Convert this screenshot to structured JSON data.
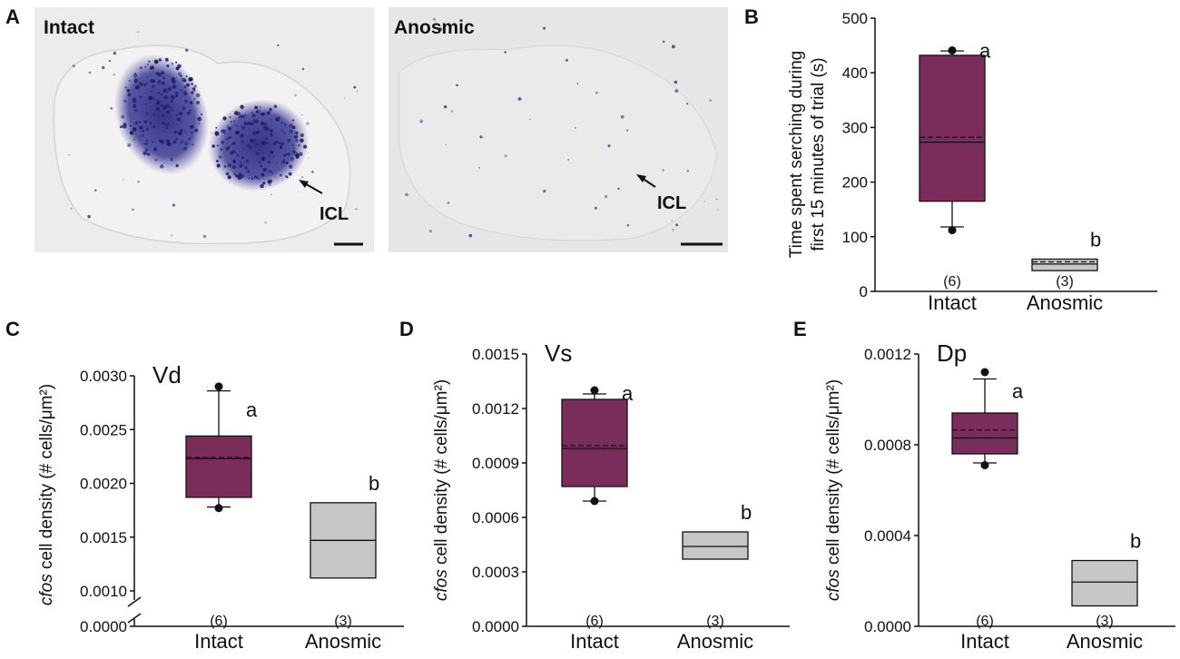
{
  "panel_labels": [
    "A",
    "B",
    "C",
    "D",
    "E"
  ],
  "images": [
    {
      "label": "Intact",
      "annotation": "ICL"
    },
    {
      "label": "Anosmic",
      "annotation": "ICL"
    }
  ],
  "colors": {
    "intact": "#7a2d5a",
    "anosmic": "#c6c6c6",
    "stain": "#2a2a80"
  },
  "chart_data": [
    {
      "panel": "B",
      "type": "box",
      "ylabel": [
        "Time spent serching during",
        "first 15 minutes of trial (s)"
      ],
      "ylim": [
        0,
        500
      ],
      "yticks": [
        "0",
        "100",
        "200",
        "300",
        "400",
        "500"
      ],
      "categories": [
        "Intact",
        "Anosmic"
      ],
      "series": [
        {
          "name": "Intact",
          "q1": 165,
          "median": 273,
          "mean": 282,
          "q3": 432,
          "whisker_low": 118,
          "whisker_high": 440,
          "outliers": [
            112,
            441
          ],
          "n": "(6)",
          "sig": "a"
        },
        {
          "name": "Anosmic",
          "q1": 38,
          "median": 50,
          "mean": 54,
          "q3": 59,
          "whisker_low": null,
          "whisker_high": null,
          "outliers": [],
          "n": "(3)",
          "sig": "b"
        }
      ]
    },
    {
      "panel": "C",
      "type": "box",
      "region": "Vd",
      "ylabel_italic": "cfos",
      "ylabel_rest": " cell density (# cells/μm²)",
      "ylim": [
        0.001,
        0.003
      ],
      "axis_break": true,
      "yticks": [
        "0.0010",
        "0.0015",
        "0.0020",
        "0.0025",
        "0.0030"
      ],
      "ytick_below_break": "0.0000",
      "categories": [
        "Intact",
        "Anosmic"
      ],
      "series": [
        {
          "name": "Intact",
          "q1": 0.00187,
          "median": 0.00223,
          "mean": 0.00224,
          "q3": 0.00244,
          "whisker_low": 0.00178,
          "whisker_high": 0.00286,
          "outliers": [
            0.00177,
            0.0029
          ],
          "n": "(6)",
          "sig": "a"
        },
        {
          "name": "Anosmic",
          "q1": 0.00112,
          "median": 0.00147,
          "mean": 0.00147,
          "q3": 0.00182,
          "whisker_low": null,
          "whisker_high": null,
          "outliers": [],
          "n": "(3)",
          "sig": "b"
        }
      ]
    },
    {
      "panel": "D",
      "type": "box",
      "region": "Vs",
      "ylabel_italic": "cfos",
      "ylabel_rest": " cell density (# cells/μm²)",
      "ylim": [
        0,
        0.0015
      ],
      "yticks": [
        "0.0000",
        "0.0003",
        "0.0006",
        "0.0009",
        "0.0012",
        "0.0015"
      ],
      "categories": [
        "Intact",
        "Anosmic"
      ],
      "series": [
        {
          "name": "Intact",
          "q1": 0.00077,
          "median": 0.00098,
          "mean": 0.000995,
          "q3": 0.00125,
          "whisker_low": 0.00069,
          "whisker_high": 0.00128,
          "outliers": [
            0.00069,
            0.0013
          ],
          "n": "(6)",
          "sig": "a"
        },
        {
          "name": "Anosmic",
          "q1": 0.00037,
          "median": 0.00044,
          "mean": 0.00044,
          "q3": 0.00052,
          "whisker_low": null,
          "whisker_high": null,
          "outliers": [],
          "n": "(3)",
          "sig": "b"
        }
      ]
    },
    {
      "panel": "E",
      "type": "box",
      "region": "Dp",
      "ylabel_italic": "cfos",
      "ylabel_rest": " cell density (# cells/μm²)",
      "ylim": [
        0,
        0.0012
      ],
      "yticks": [
        "0.0000",
        "0.0004",
        "0.0008",
        "0.0012"
      ],
      "categories": [
        "Intact",
        "Anosmic"
      ],
      "series": [
        {
          "name": "Intact",
          "q1": 0.00076,
          "median": 0.00083,
          "mean": 0.000865,
          "q3": 0.00094,
          "whisker_low": 0.00072,
          "whisker_high": 0.00109,
          "outliers": [
            0.00071,
            0.00112
          ],
          "n": "(6)",
          "sig": "a"
        },
        {
          "name": "Anosmic",
          "q1": 9e-05,
          "median": 0.000195,
          "mean": 0.000195,
          "q3": 0.00029,
          "whisker_low": null,
          "whisker_high": null,
          "outliers": [],
          "n": "(3)",
          "sig": "b"
        }
      ]
    }
  ]
}
